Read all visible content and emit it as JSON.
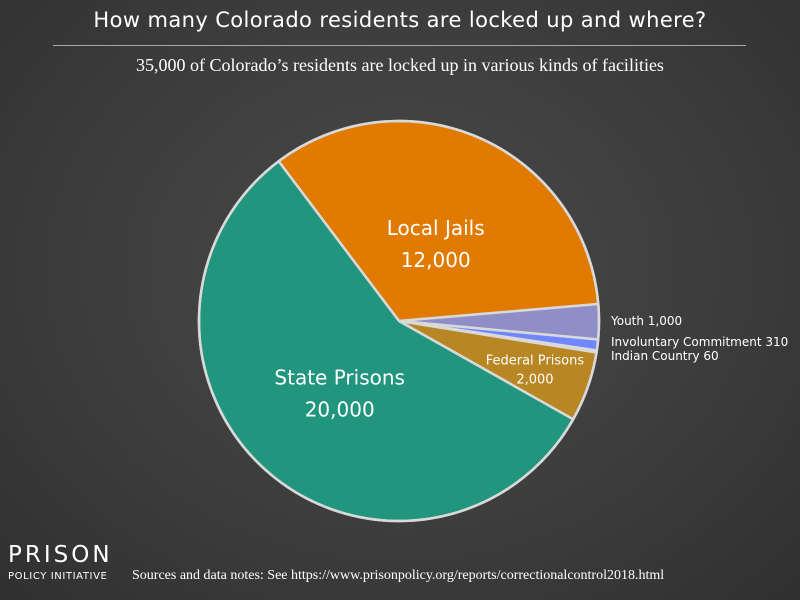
{
  "title": "How many Colorado residents are locked up and where?",
  "subtitle": "35,000 of Colorado’s residents are locked up in various kinds of facilities",
  "logo": {
    "word": "PRISON",
    "sub": "POLICY INITIATIVE"
  },
  "sources": "Sources and data notes: See https://www.prisonpolicy.org/reports/correctionalcontrol2018.html",
  "chart_data": {
    "type": "pie",
    "slices": [
      {
        "label": "Local Jails",
        "value_label": "12,000",
        "value": 12000,
        "color": "#e07a00"
      },
      {
        "label": "Youth",
        "value_label": "1,000",
        "value": 1000,
        "color": "#8f8ec6"
      },
      {
        "label": "Involuntary Commitment",
        "value_label": "310",
        "value": 310,
        "color": "#6f86ff"
      },
      {
        "label": "Indian Country",
        "value_label": "60",
        "value": 60,
        "color": "#b8b8b8"
      },
      {
        "label": "Federal Prisons",
        "value_label": "2,000",
        "value": 2000,
        "color": "#b88622"
      },
      {
        "label": "State Prisons",
        "value_label": "20,000",
        "value": 20000,
        "color": "#22957f"
      }
    ]
  }
}
